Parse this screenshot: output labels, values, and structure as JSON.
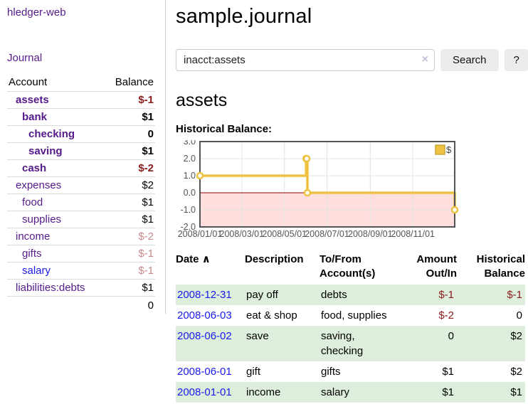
{
  "app": {
    "brand": "hledger-web",
    "nav_journal": "Journal"
  },
  "colors": {
    "link_purple": "#551A8B",
    "link_blue": "#1a1aee",
    "negative_red": "#8b1a1a",
    "dim_negative_red": "#c78888",
    "row_green": "#deeedd",
    "chart_gold": "#EDC240",
    "chart_negative_fill": "#ffdede",
    "chart_zero_line": "#8b0000",
    "button_gray": "#ececec"
  },
  "sidebar": {
    "headers": [
      "Account",
      "Balance"
    ],
    "rows": [
      {
        "account": "assets",
        "balance": "$-1",
        "depth": 1,
        "bold": true,
        "balance_style": "neg",
        "link_style": "purple"
      },
      {
        "account": "bank",
        "balance": "$1",
        "depth": 2,
        "bold": true,
        "balance_style": "",
        "link_style": "purple"
      },
      {
        "account": "checking",
        "balance": "0",
        "depth": 3,
        "bold": true,
        "balance_style": "",
        "link_style": "purple"
      },
      {
        "account": "saving",
        "balance": "$1",
        "depth": 3,
        "bold": true,
        "balance_style": "",
        "link_style": "purple"
      },
      {
        "account": "cash",
        "balance": "$-2",
        "depth": 2,
        "bold": true,
        "balance_style": "neg",
        "link_style": "purple"
      },
      {
        "account": "expenses",
        "balance": "$2",
        "depth": 1,
        "bold": false,
        "balance_style": "",
        "link_style": "purple"
      },
      {
        "account": "food",
        "balance": "$1",
        "depth": 2,
        "bold": false,
        "balance_style": "",
        "link_style": "purple"
      },
      {
        "account": "supplies",
        "balance": "$1",
        "depth": 2,
        "bold": false,
        "balance_style": "",
        "link_style": "purple"
      },
      {
        "account": "income",
        "balance": "$-2",
        "depth": 1,
        "bold": false,
        "balance_style": "dim-neg",
        "link_style": "purple"
      },
      {
        "account": "gifts",
        "balance": "$-1",
        "depth": 2,
        "bold": false,
        "balance_style": "dim-neg",
        "link_style": "purple"
      },
      {
        "account": "salary",
        "balance": "$-1",
        "depth": 2,
        "bold": false,
        "balance_style": "dim-neg",
        "link_style": "blue"
      },
      {
        "account": "liabilities:debts",
        "balance": "$1",
        "depth": 1,
        "bold": false,
        "balance_style": "",
        "link_style": "purple"
      }
    ],
    "total": "0"
  },
  "header": {
    "title": "sample.journal"
  },
  "search": {
    "value": "inacct:assets",
    "clear_icon": "×",
    "button_label": "Search",
    "help_label": "?"
  },
  "main": {
    "account_heading": "assets"
  },
  "chart_data": {
    "type": "line",
    "title": "Historical Balance:",
    "step": true,
    "series": [
      {
        "name": "$",
        "color": "#EDC240",
        "points": [
          [
            "2008-01-01",
            1
          ],
          [
            "2008-06-01",
            2
          ],
          [
            "2008-06-02",
            2
          ],
          [
            "2008-06-03",
            0
          ],
          [
            "2008-12-31",
            -1
          ]
        ]
      }
    ],
    "xlim": [
      "2008-01-01",
      "2008-12-31"
    ],
    "ylim": [
      -2,
      3
    ],
    "x_ticks": [
      "2008/01/01",
      "2008/03/01",
      "2008/05/01",
      "2008/07/01",
      "2008/09/01",
      "2008/11/01"
    ],
    "y_ticks": [
      "3.0",
      "2.0",
      "1.0",
      "0.0",
      "-1.0",
      "-2.0"
    ],
    "grid": true,
    "legend": {
      "label": "$",
      "position": "top-right"
    },
    "negative_region_color": "#ffdede",
    "zero_line_color": "#8b0000"
  },
  "register": {
    "headers": [
      "Date",
      "Description",
      "To/From Account(s)",
      "Amount Out/In",
      "Historical Balance"
    ],
    "sort_indicator": "∧",
    "rows": [
      {
        "date": "2008-12-31",
        "description": "pay off",
        "accounts": "debts",
        "amount": "$-1",
        "amount_negative": true,
        "balance": "$-1",
        "balance_negative": true
      },
      {
        "date": "2008-06-03",
        "description": "eat & shop",
        "accounts": "food, supplies",
        "amount": "$-2",
        "amount_negative": true,
        "balance": "0",
        "balance_negative": false
      },
      {
        "date": "2008-06-02",
        "description": "save",
        "accounts": "saving,\nchecking",
        "amount": "0",
        "amount_negative": false,
        "balance": "$2",
        "balance_negative": false
      },
      {
        "date": "2008-06-01",
        "description": "gift",
        "accounts": "gifts",
        "amount": "$1",
        "amount_negative": false,
        "balance": "$2",
        "balance_negative": false
      },
      {
        "date": "2008-01-01",
        "description": "income",
        "accounts": "salary",
        "amount": "$1",
        "amount_negative": false,
        "balance": "$1",
        "balance_negative": false
      }
    ]
  }
}
